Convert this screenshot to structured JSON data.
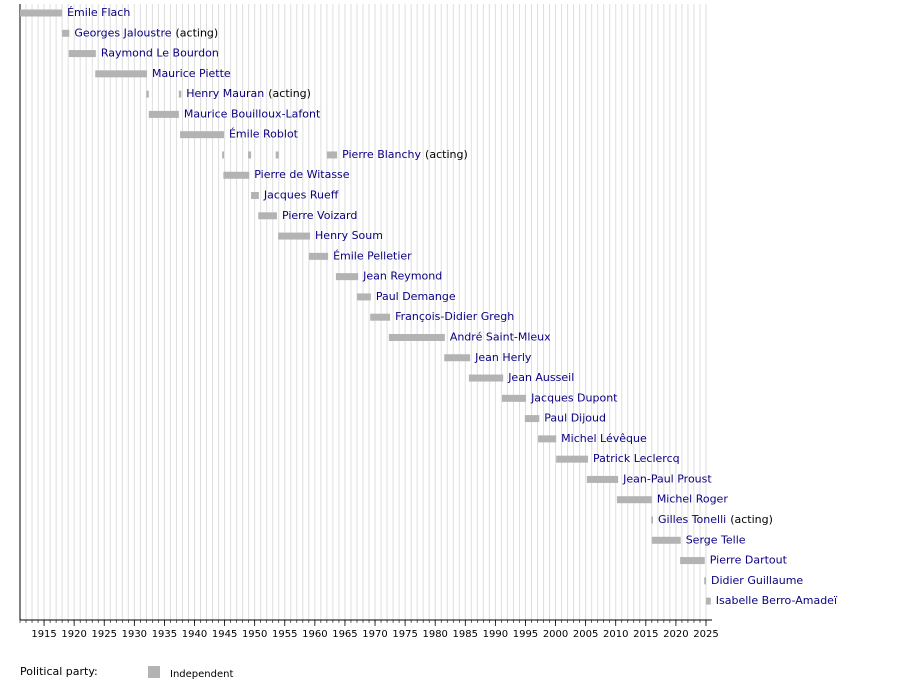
{
  "chart_data": {
    "type": "timeline",
    "xlim": [
      1911,
      2026
    ],
    "xticks": [
      1915,
      1920,
      1925,
      1930,
      1935,
      1940,
      1945,
      1950,
      1955,
      1960,
      1965,
      1970,
      1975,
      1980,
      1985,
      1990,
      1995,
      2000,
      2005,
      2010,
      2015,
      2020,
      2025
    ],
    "xminorticks": [
      1911,
      1912,
      1913,
      1914,
      1915,
      1916,
      1917,
      1918,
      1919,
      1920,
      1921,
      1922,
      1923,
      1924,
      1925,
      1926,
      1927,
      1928,
      1929,
      1930,
      1931,
      1932,
      1933,
      1934,
      1935,
      1936,
      1937,
      1938,
      1939,
      1940,
      1941,
      1942,
      1943,
      1944,
      1945,
      1946,
      1947,
      1948,
      1949,
      1950,
      1951,
      1952,
      1953,
      1954,
      1955,
      1956,
      1957,
      1958,
      1959,
      1960,
      1961,
      1962,
      1963,
      1964,
      1965,
      1966,
      1967,
      1968,
      1969,
      1970,
      1971,
      1972,
      1973,
      1974,
      1975,
      1976,
      1977,
      1978,
      1979,
      1980,
      1981,
      1982,
      1983,
      1984,
      1985,
      1986,
      1987,
      1988,
      1989,
      1990,
      1991,
      1992,
      1993,
      1994,
      1995,
      1996,
      1997,
      1998,
      1999,
      2000,
      2001,
      2002,
      2003,
      2004,
      2005,
      2006,
      2007,
      2008,
      2009,
      2010,
      2011,
      2012,
      2013,
      2014,
      2015,
      2016,
      2017,
      2018,
      2019,
      2020,
      2021,
      2022,
      2023,
      2024,
      2025
    ],
    "grid": true,
    "legend_title": "Political party:",
    "parties": [
      {
        "name": "Independent",
        "color": "#b3b3b3"
      }
    ],
    "rows": [
      {
        "name": "Émile Flach",
        "periods": [
          [
            1911,
            1918
          ]
        ]
      },
      {
        "name": "Georges Jaloustre",
        "note": "(acting)",
        "periods": [
          [
            1918,
            1919.2
          ]
        ]
      },
      {
        "name": "Raymond Le Bourdon",
        "periods": [
          [
            1919.1,
            1923.6
          ]
        ]
      },
      {
        "name": "Maurice Piette",
        "periods": [
          [
            1923.5,
            1932.1
          ]
        ]
      },
      {
        "name": "Henry Mauran",
        "note": "(acting)",
        "periods": [
          [
            1932,
            1932.4
          ],
          [
            1937.4,
            1937.8
          ]
        ]
      },
      {
        "name": "Maurice Bouilloux-Lafont",
        "periods": [
          [
            1932.4,
            1937.4
          ]
        ]
      },
      {
        "name": "Émile Roblot",
        "periods": [
          [
            1937.6,
            1944.9
          ]
        ]
      },
      {
        "name": "Pierre Blanchy",
        "note": "(acting)",
        "periods": [
          [
            1944.6,
            1944.9
          ],
          [
            1948.9,
            1949.4
          ],
          [
            1953.5,
            1954
          ],
          [
            1962,
            1963.7
          ]
        ]
      },
      {
        "name": "Pierre de Witasse",
        "periods": [
          [
            1944.8,
            1949.1
          ]
        ]
      },
      {
        "name": "Jacques Rueff",
        "periods": [
          [
            1949.4,
            1950.7
          ]
        ]
      },
      {
        "name": "Pierre Voizard",
        "periods": [
          [
            1950.6,
            1953.7
          ]
        ]
      },
      {
        "name": "Henry Soum",
        "periods": [
          [
            1953.9,
            1959.2
          ]
        ]
      },
      {
        "name": "Émile Pelletier",
        "periods": [
          [
            1959,
            1962.2
          ]
        ]
      },
      {
        "name": "Jean Reymond",
        "periods": [
          [
            1963.5,
            1967.2
          ]
        ]
      },
      {
        "name": "Paul Demange",
        "periods": [
          [
            1967,
            1969.3
          ]
        ]
      },
      {
        "name": "François-Didier Gregh",
        "periods": [
          [
            1969.2,
            1972.5
          ]
        ]
      },
      {
        "name": "André Saint-Mleux",
        "periods": [
          [
            1972.3,
            1981.6
          ]
        ]
      },
      {
        "name": "Jean Herly",
        "periods": [
          [
            1981.5,
            1985.8
          ]
        ]
      },
      {
        "name": "Jean Ausseil",
        "periods": [
          [
            1985.6,
            1991.3
          ]
        ]
      },
      {
        "name": "Jacques Dupont",
        "periods": [
          [
            1991.1,
            1995.1
          ]
        ]
      },
      {
        "name": "Paul Dijoud",
        "periods": [
          [
            1994.9,
            1997.3
          ]
        ]
      },
      {
        "name": "Michel Lévêque",
        "periods": [
          [
            1997.1,
            2000.1
          ]
        ]
      },
      {
        "name": "Patrick Leclercq",
        "periods": [
          [
            2000.1,
            2005.4
          ]
        ]
      },
      {
        "name": "Jean-Paul Proust",
        "periods": [
          [
            2005.2,
            2010.4
          ]
        ]
      },
      {
        "name": "Michel Roger",
        "periods": [
          [
            2010.2,
            2016
          ]
        ]
      },
      {
        "name": "Gilles Tonelli",
        "note": "(acting)",
        "periods": [
          [
            2015.9,
            2016.2
          ]
        ]
      },
      {
        "name": "Serge Telle",
        "periods": [
          [
            2016,
            2020.8
          ]
        ]
      },
      {
        "name": "Pierre Dartout",
        "periods": [
          [
            2020.7,
            2024.8
          ]
        ]
      },
      {
        "name": "Didier Guillaume",
        "periods": [
          [
            2024.7,
            2025
          ]
        ]
      },
      {
        "name": "Isabelle Berro-Amadeï",
        "periods": [
          [
            2025,
            2025.8
          ]
        ]
      }
    ]
  }
}
